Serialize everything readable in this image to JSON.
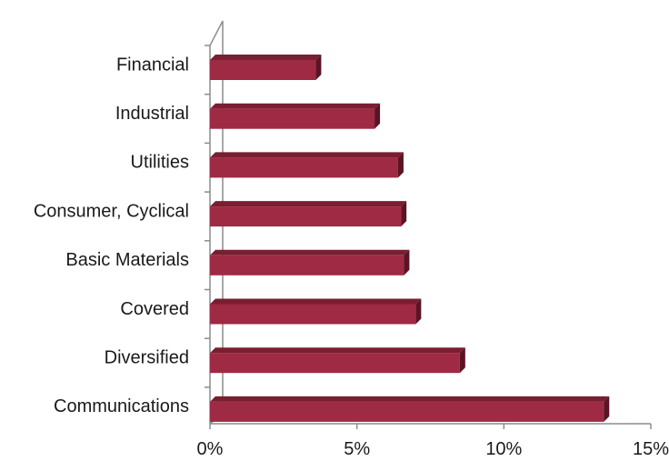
{
  "chart_data": {
    "type": "bar",
    "orientation": "horizontal",
    "categories": [
      "Financial",
      "Industrial",
      "Utilities",
      "Consumer, Cyclical",
      "Basic Materials",
      "Covered",
      "Diversified",
      "Communications"
    ],
    "values": [
      3.6,
      5.6,
      6.4,
      6.5,
      6.6,
      7.0,
      8.5,
      13.4
    ],
    "x_ticks": [
      "0%",
      "5%",
      "10%",
      "15%"
    ],
    "xlim": [
      0,
      15
    ],
    "title": "",
    "xlabel": "",
    "ylabel": "",
    "grid": false,
    "legend": "none",
    "style": "3d",
    "colors": {
      "bar": "#9e2a43",
      "bar_top": "#7a1e31",
      "bar_side": "#5c1324",
      "axis": "#8c8c8c"
    }
  }
}
